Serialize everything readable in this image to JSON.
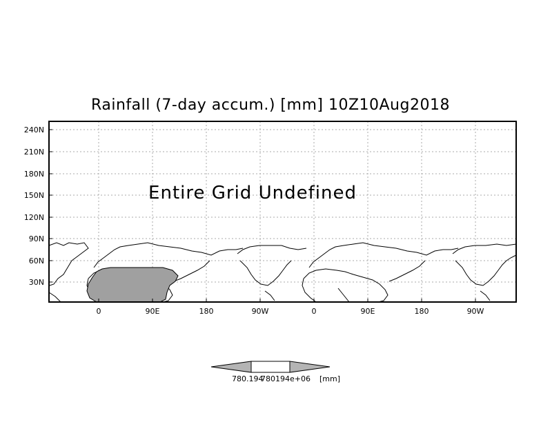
{
  "title": "Rainfall (7-day accum.) [mm] 10Z10Aug2018",
  "message": "Entire Grid Undefined",
  "y_ticks": [
    "240N",
    "210N",
    "180N",
    "150N",
    "120N",
    "90N",
    "60N",
    "30N"
  ],
  "x_ticks": [
    "0",
    "90E",
    "180",
    "90W",
    "0",
    "90E",
    "180",
    "90W"
  ],
  "colorbar": {
    "label_left": "780.194",
    "label_center": "780194e+06",
    "label_units": "[mm]"
  },
  "colors": {
    "land_shade": "#a0a0a0",
    "grid": "#a8a8a8",
    "colorbar_arrow": "#b4b4b4"
  }
}
